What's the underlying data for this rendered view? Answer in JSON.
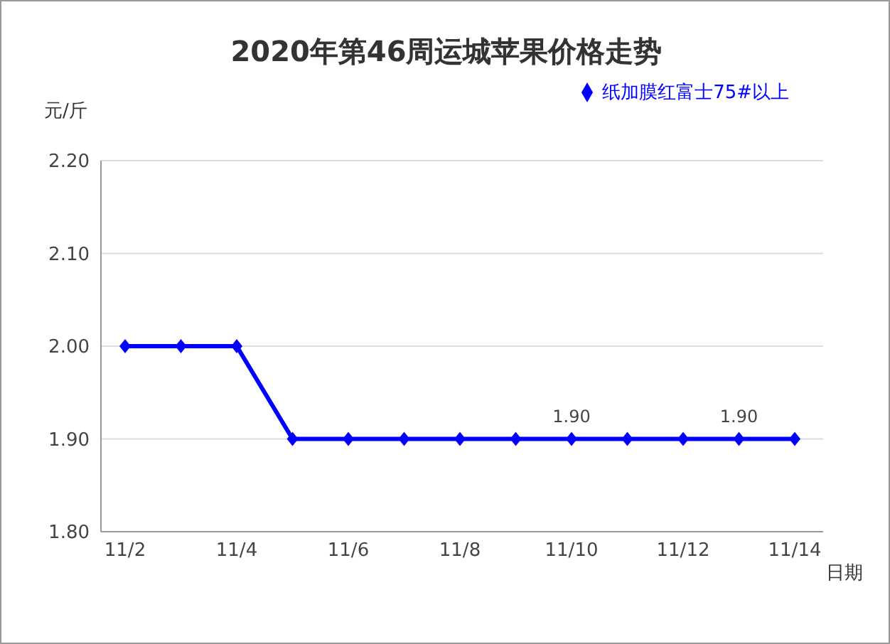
{
  "chart_data": {
    "type": "line",
    "title": "2020年第46周运城苹果价格走势",
    "ylabel": "元/斤",
    "xlabel": "日期",
    "categories": [
      "11/2",
      null,
      "11/4",
      null,
      "11/6",
      null,
      "11/8",
      null,
      "11/10",
      null,
      "11/12",
      null,
      "11/14"
    ],
    "series": [
      {
        "name": "纸加膜红富士75#以上",
        "color": "#0000ff",
        "values": [
          2.0,
          2.0,
          2.0,
          1.9,
          1.9,
          1.9,
          1.9,
          1.9,
          1.9,
          1.9,
          1.9,
          1.9,
          1.9
        ],
        "value_labels": [
          null,
          null,
          null,
          null,
          null,
          null,
          null,
          null,
          "1.90",
          null,
          null,
          "1.90",
          null
        ]
      }
    ],
    "ylim": [
      1.8,
      2.2
    ],
    "yticks": [
      {
        "value": 1.8,
        "label": "1.80"
      },
      {
        "value": 1.9,
        "label": "1.90"
      },
      {
        "value": 2.0,
        "label": "2.00"
      },
      {
        "value": 2.1,
        "label": "2.10"
      },
      {
        "value": 2.2,
        "label": "2.20"
      }
    ],
    "grid": "y",
    "legend": "top right",
    "marker": "diamond",
    "line_style": "solid"
  }
}
